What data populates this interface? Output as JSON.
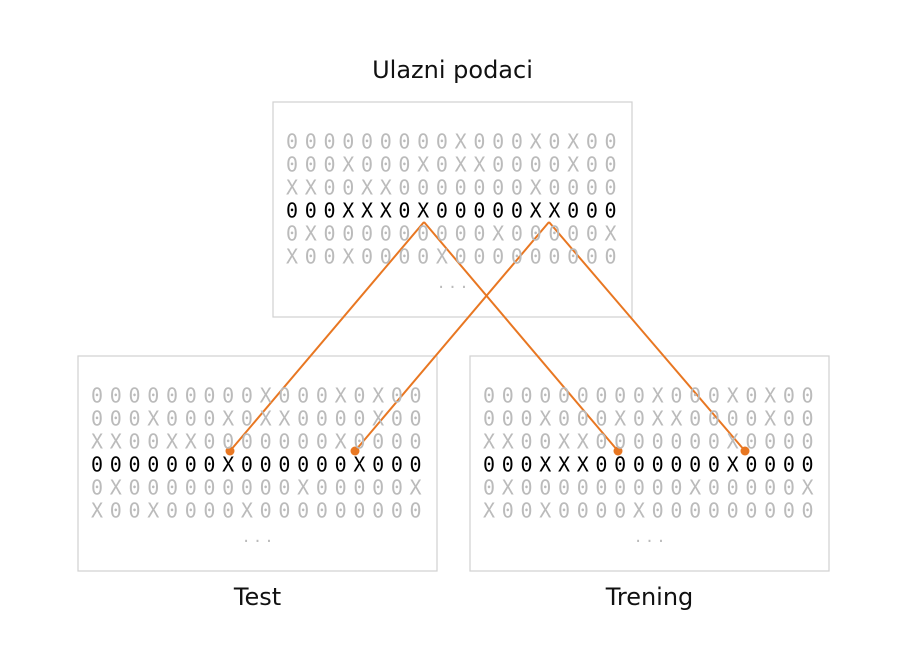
{
  "boxes": [
    {
      "title": "Ulazni podaci",
      "rows": [
        "000000000X000X0X00",
        "000X000X0XX0000X00",
        "XX00XX0000000X0000",
        "000XXX0X00000XX000",
        "0X000000000X00000X",
        "X00X0000X000000000"
      ],
      "ellipsis": "· · ·"
    },
    {
      "title": "Test",
      "rows": [
        "000000000X000X0X00",
        "000X000X0XX0000X00",
        "XX00XX0000000X0000",
        "0000000X000000X000",
        "0X000000000X00000X",
        "X00X0000X000000000"
      ],
      "ellipsis": "· · ·"
    },
    {
      "title": "Trening",
      "rows": [
        "000000000X000X0X00",
        "000X000X0XX0000X00",
        "XX00XX0000000X0000",
        "000XXX0000000X0000",
        "0X000000000X00000X",
        "X00X0000X000000000"
      ],
      "ellipsis": "· · ·"
    }
  ]
}
